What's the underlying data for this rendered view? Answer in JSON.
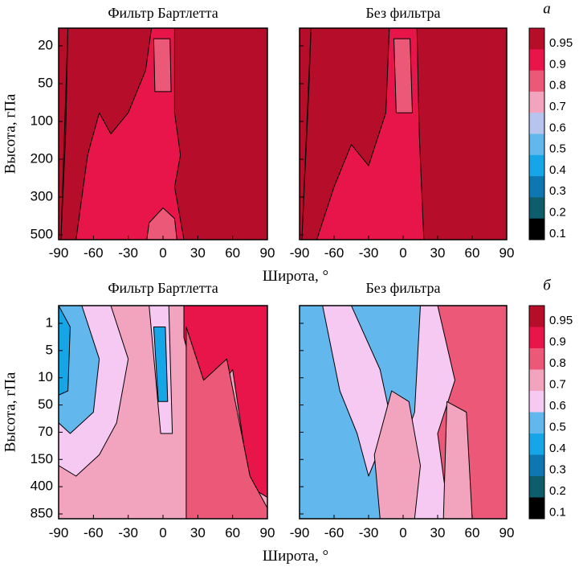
{
  "chart_data": [
    {
      "type": "heatmap",
      "panel_label": "а",
      "ylabel": "Высота, гПа",
      "xlabel": "Широта, °",
      "yticks": [
        "20",
        "50",
        "100",
        "200",
        "300",
        "500"
      ],
      "xticks": [
        "-90",
        "-60",
        "-30",
        "0",
        "30",
        "60",
        "90"
      ],
      "xlim": [
        -90,
        90
      ],
      "colorbar": {
        "labels": [
          "0.95",
          "0.9",
          "0.8",
          "0.7",
          "0.6",
          "0.5",
          "0.4",
          "0.3",
          "0.2",
          "0.1"
        ],
        "colors": [
          "#b50d2a",
          "#e8154a",
          "#ec5878",
          "#f2a3bd",
          "#b7c4ee",
          "#62b8ec",
          "#16a5e6",
          "#0e76b1",
          "#0d5e6a",
          "#000000"
        ]
      },
      "panels": [
        {
          "title": "Фильтр Бартлетта",
          "background_value": 0.95,
          "regions": [
            {
              "value": 0.9,
              "description": "band",
              "extent": [
                [
                  -88,
                  1.0
                ],
                [
                  -84,
                  0.5
                ],
                [
                  -82,
                  0.0
                ]
              ]
            },
            {
              "value": 0.9,
              "description": "plume",
              "extent": [
                [
                  -75,
                  1.0
                ],
                [
                  -65,
                  0.6
                ],
                [
                  -55,
                  0.4
                ],
                [
                  -45,
                  0.5
                ],
                [
                  -30,
                  0.4
                ],
                [
                  -15,
                  0.2
                ],
                [
                  -10,
                  0.0
                ],
                [
                  10,
                  0.0
                ],
                [
                  10,
                  0.4
                ],
                [
                  15,
                  0.6
                ],
                [
                  10,
                  0.75
                ],
                [
                  18,
                  1.0
                ]
              ]
            },
            {
              "value": 0.8,
              "description": "core",
              "extent": [
                [
                  -8,
                  0.05
                ],
                [
                  6,
                  0.05
                ],
                [
                  7,
                  0.3
                ],
                [
                  -7,
                  0.3
                ]
              ]
            },
            {
              "value": 0.8,
              "description": "base",
              "extent": [
                [
                  -12,
                  0.92
                ],
                [
                  0,
                  0.85
                ],
                [
                  10,
                  0.9
                ],
                [
                  12,
                  1.0
                ],
                [
                  -14,
                  1.0
                ]
              ]
            }
          ]
        },
        {
          "title": "Без фильтра",
          "background_value": 0.95,
          "regions": [
            {
              "value": 0.9,
              "description": "band",
              "extent": [
                [
                  -88,
                  1.0
                ],
                [
                  -82,
                  0.3
                ],
                [
                  -80,
                  0.0
                ]
              ]
            },
            {
              "value": 0.9,
              "description": "plume",
              "extent": [
                [
                  -75,
                  1.0
                ],
                [
                  -60,
                  0.75
                ],
                [
                  -45,
                  0.55
                ],
                [
                  -30,
                  0.65
                ],
                [
                  -15,
                  0.4
                ],
                [
                  -12,
                  0.0
                ],
                [
                  12,
                  0.0
                ],
                [
                  14,
                  0.5
                ],
                [
                  18,
                  1.0
                ]
              ]
            },
            {
              "value": 0.8,
              "description": "core",
              "extent": [
                [
                  -8,
                  0.05
                ],
                [
                  6,
                  0.05
                ],
                [
                  8,
                  0.4
                ],
                [
                  -6,
                  0.4
                ]
              ]
            }
          ]
        }
      ]
    },
    {
      "type": "heatmap",
      "panel_label": "б",
      "ylabel": "Высота, гПа",
      "xlabel": "Широта, °",
      "yticks": [
        "1",
        "5",
        "10",
        "50",
        "70",
        "150",
        "400",
        "850"
      ],
      "xticks": [
        "-90",
        "-60",
        "-30",
        "0",
        "30",
        "60",
        "90"
      ],
      "xlim": [
        -90,
        90
      ],
      "colorbar": {
        "labels": [
          "0.95",
          "0.9",
          "0.8",
          "0.7",
          "0.6",
          "0.5",
          "0.4",
          "0.3",
          "0.2",
          "0.1"
        ],
        "colors": [
          "#b50d2a",
          "#e8154a",
          "#ec5878",
          "#f2a3bd",
          "#f6c9f3",
          "#62b8ec",
          "#16a5e6",
          "#0e76b1",
          "#0d5e6a",
          "#000000"
        ]
      },
      "panels": [
        {
          "title": "Фильтр Бартлетта",
          "background_value": 0.7,
          "regions": [
            {
              "value": 0.6,
              "description": "left",
              "extent": [
                [
                  -90,
                  0.0
                ],
                [
                  -45,
                  0.0
                ],
                [
                  -30,
                  0.25
                ],
                [
                  -40,
                  0.55
                ],
                [
                  -55,
                  0.7
                ],
                [
                  -75,
                  0.8
                ],
                [
                  -90,
                  0.75
                ]
              ]
            },
            {
              "value": 0.5,
              "description": "left-core",
              "extent": [
                [
                  -90,
                  0.0
                ],
                [
                  -70,
                  0.0
                ],
                [
                  -55,
                  0.25
                ],
                [
                  -60,
                  0.5
                ],
                [
                  -80,
                  0.6
                ],
                [
                  -90,
                  0.55
                ]
              ]
            },
            {
              "value": 0.4,
              "description": "left-inner",
              "extent": [
                [
                  -90,
                  0.0
                ],
                [
                  -80,
                  0.1
                ],
                [
                  -82,
                  0.4
                ],
                [
                  -90,
                  0.42
                ]
              ]
            },
            {
              "value": 0.6,
              "description": "equator",
              "extent": [
                [
                  -12,
                  0.0
                ],
                [
                  5,
                  0.0
                ],
                [
                  8,
                  0.6
                ],
                [
                  -2,
                  0.6
                ]
              ]
            },
            {
              "value": 0.4,
              "description": "equator-core",
              "extent": [
                [
                  -8,
                  0.1
                ],
                [
                  2,
                  0.1
                ],
                [
                  4,
                  0.45
                ],
                [
                  -4,
                  0.45
                ]
              ]
            },
            {
              "value": 0.9,
              "description": "right-top",
              "extent": [
                [
                  18,
                  0.0
                ],
                [
                  90,
                  0.0
                ],
                [
                  90,
                  0.9
                ],
                [
                  75,
                  0.85
                ],
                [
                  60,
                  0.3
                ],
                [
                  40,
                  0.45
                ],
                [
                  25,
                  0.3
                ],
                [
                  18,
                  0.15
                ]
              ]
            },
            {
              "value": 0.8,
              "description": "right",
              "extent": [
                [
                  20,
                  0.1
                ],
                [
                  35,
                  0.35
                ],
                [
                  55,
                  0.25
                ],
                [
                  75,
                  0.8
                ],
                [
                  90,
                  0.95
                ],
                [
                  90,
                  1.0
                ],
                [
                  20,
                  1.0
                ]
              ]
            }
          ]
        },
        {
          "title": "Без фильтра",
          "background_value": 0.6,
          "regions": [
            {
              "value": 0.5,
              "description": "left",
              "extent": [
                [
                  -90,
                  0.0
                ],
                [
                  -70,
                  0.0
                ],
                [
                  -55,
                  0.4
                ],
                [
                  -40,
                  0.6
                ],
                [
                  -30,
                  0.8
                ],
                [
                  -15,
                  0.6
                ],
                [
                  -10,
                  1.0
                ],
                [
                  -90,
                  1.0
                ]
              ]
            },
            {
              "value": 0.5,
              "description": "middle",
              "extent": [
                [
                  -45,
                  0.0
                ],
                [
                  15,
                  0.0
                ],
                [
                  10,
                  0.5
                ],
                [
                  0,
                  0.65
                ],
                [
                  -10,
                  0.55
                ],
                [
                  -20,
                  0.3
                ]
              ]
            },
            {
              "value": 0.7,
              "description": "center",
              "extent": [
                [
                  -10,
                  0.4
                ],
                [
                  5,
                  0.45
                ],
                [
                  15,
                  0.75
                ],
                [
                  10,
                  1.0
                ],
                [
                  -20,
                  1.0
                ],
                [
                  -25,
                  0.7
                ]
              ]
            },
            {
              "value": 0.8,
              "description": "right",
              "extent": [
                [
                  30,
                  0.0
                ],
                [
                  90,
                  0.0
                ],
                [
                  90,
                  1.0
                ],
                [
                  40,
                  1.0
                ],
                [
                  30,
                  0.6
                ],
                [
                  45,
                  0.35
                ]
              ]
            },
            {
              "value": 0.7,
              "description": "right-inner",
              "extent": [
                [
                  38,
                  0.45
                ],
                [
                  55,
                  0.5
                ],
                [
                  60,
                  1.0
                ],
                [
                  35,
                  1.0
                ]
              ]
            }
          ]
        }
      ]
    }
  ]
}
